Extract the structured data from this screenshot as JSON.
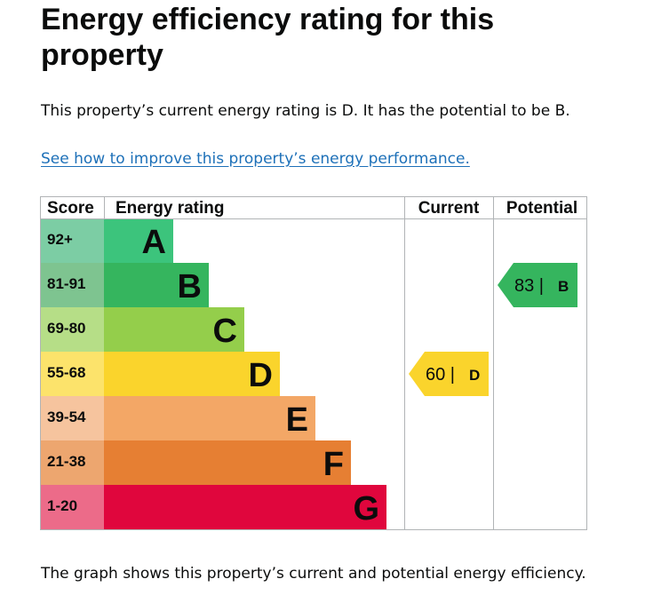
{
  "page": {
    "title": "Energy efficiency rating for this property",
    "summary": "This property’s current energy rating is D. It has the potential to be B.",
    "improve_link": "See how to improve this property’s energy performance.",
    "caption": "The graph shows this property’s current and potential energy efficiency."
  },
  "chart_data": {
    "type": "table",
    "headers": {
      "score": "Score",
      "rating": "Energy rating",
      "current": "Current",
      "potential": "Potential"
    },
    "bands": [
      {
        "range": "92+",
        "letter": "A",
        "color": "#3cc47c",
        "score_bg": "#7ccda4"
      },
      {
        "range": "81-91",
        "letter": "B",
        "color": "#35b55e",
        "score_bg": "#7ec490"
      },
      {
        "range": "69-80",
        "letter": "C",
        "color": "#94ce4b",
        "score_bg": "#b6de87"
      },
      {
        "range": "55-68",
        "letter": "D",
        "color": "#fad42c",
        "score_bg": "#fce36b"
      },
      {
        "range": "39-54",
        "letter": "E",
        "color": "#f3a766",
        "score_bg": "#f6c49e"
      },
      {
        "range": "21-38",
        "letter": "F",
        "color": "#e67f33",
        "score_bg": "#eda66f"
      },
      {
        "range": "1-20",
        "letter": "G",
        "color": "#e0063d",
        "score_bg": "#ec6b89"
      }
    ],
    "current": {
      "value": 60,
      "letter": "D",
      "text": "60 |",
      "color": "#fad42c"
    },
    "potential": {
      "value": 83,
      "letter": "B",
      "text": "83 |",
      "color": "#35b55e"
    }
  }
}
